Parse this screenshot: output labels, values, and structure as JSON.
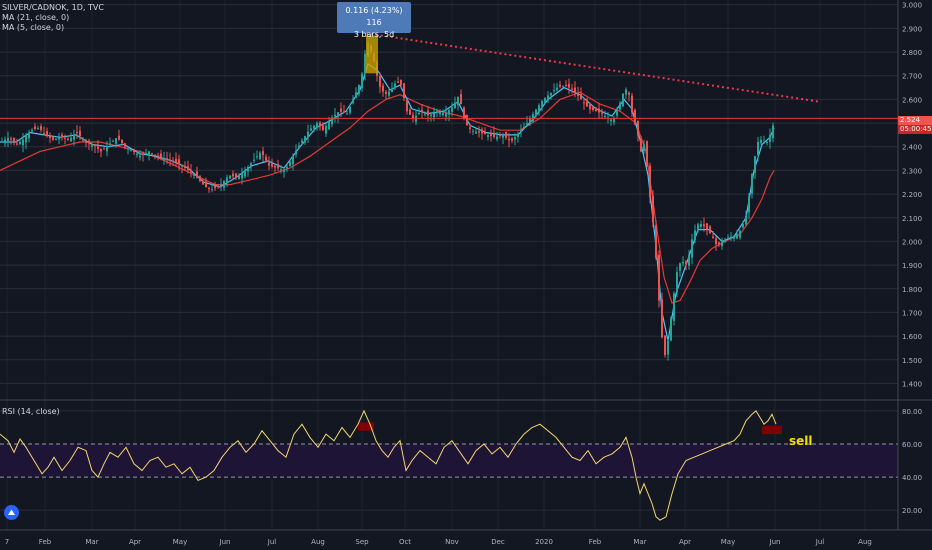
{
  "header": {
    "symbol": "SILVER/CADNOK, 1D, TVC",
    "ma1": "MA (21, close, 0)",
    "ma2": "MA (5, close, 0)"
  },
  "tooltip": {
    "line1": "0.116 (4.23%) 116",
    "line2": "3 bars, 5d"
  },
  "rsi_label": "RSI (14, close)",
  "sell_label": "sell",
  "current": {
    "price": "2.524",
    "countdown": "05:00:45"
  },
  "colors": {
    "background": "#131722",
    "grid": "#2a2e39",
    "candle_up": "#26a69a",
    "candle_down": "#ef5350",
    "ma21": "#e53935",
    "ma5": "#4fc3f7",
    "rsi": "#f5d76e",
    "rsi_band": "#1e1436",
    "trendline": "#f23645",
    "highlight": "#c8a200",
    "sell_box": "#8b0000"
  },
  "chart_data": [
    {
      "type": "candlestick",
      "title": "SILVER/CADNOK, 1D, TVC",
      "x_ticks": [
        "7",
        "Feb",
        "Mar",
        "Apr",
        "May",
        "Jun",
        "Jul",
        "Aug",
        "Sep",
        "Oct",
        "Nov",
        "Dec",
        "2020",
        "Feb",
        "Mar",
        "Apr",
        "May",
        "Jun",
        "Jul",
        "Aug"
      ],
      "y_ticks": [
        "3.000",
        "2.900",
        "2.800",
        "2.700",
        "2.600",
        "2.500",
        "2.400",
        "2.300",
        "2.200",
        "2.100",
        "2.000",
        "1.900",
        "1.800",
        "1.700",
        "1.600",
        "1.500",
        "1.400"
      ],
      "ylim": [
        1.33,
        3.02
      ],
      "series": [
        {
          "name": "MA (21, close, 0)",
          "kind": "line"
        },
        {
          "name": "MA (5, close, 0)",
          "kind": "line"
        }
      ],
      "price_path": [
        [
          0,
          2.42
        ],
        [
          8,
          2.44
        ],
        [
          16,
          2.41
        ],
        [
          22,
          2.43
        ],
        [
          30,
          2.47
        ],
        [
          38,
          2.48
        ],
        [
          44,
          2.45
        ],
        [
          52,
          2.43
        ],
        [
          60,
          2.44
        ],
        [
          68,
          2.43
        ],
        [
          76,
          2.46
        ],
        [
          84,
          2.42
        ],
        [
          92,
          2.41
        ],
        [
          100,
          2.38
        ],
        [
          108,
          2.41
        ],
        [
          116,
          2.44
        ],
        [
          124,
          2.4
        ],
        [
          132,
          2.38
        ],
        [
          140,
          2.36
        ],
        [
          148,
          2.38
        ],
        [
          156,
          2.36
        ],
        [
          164,
          2.35
        ],
        [
          172,
          2.34
        ],
        [
          180,
          2.32
        ],
        [
          188,
          2.3
        ],
        [
          196,
          2.27
        ],
        [
          204,
          2.23
        ],
        [
          212,
          2.22
        ],
        [
          220,
          2.24
        ],
        [
          228,
          2.28
        ],
        [
          236,
          2.27
        ],
        [
          244,
          2.3
        ],
        [
          252,
          2.34
        ],
        [
          260,
          2.38
        ],
        [
          268,
          2.32
        ],
        [
          276,
          2.31
        ],
        [
          284,
          2.3
        ],
        [
          292,
          2.36
        ],
        [
          300,
          2.42
        ],
        [
          308,
          2.47
        ],
        [
          316,
          2.5
        ],
        [
          322,
          2.47
        ],
        [
          330,
          2.52
        ],
        [
          338,
          2.55
        ],
        [
          346,
          2.54
        ],
        [
          354,
          2.62
        ],
        [
          360,
          2.68
        ],
        [
          366,
          2.85
        ],
        [
          372,
          2.78
        ],
        [
          378,
          2.66
        ],
        [
          384,
          2.62
        ],
        [
          390,
          2.64
        ],
        [
          396,
          2.68
        ],
        [
          400,
          2.66
        ],
        [
          406,
          2.55
        ],
        [
          412,
          2.52
        ],
        [
          420,
          2.55
        ],
        [
          428,
          2.53
        ],
        [
          436,
          2.55
        ],
        [
          444,
          2.54
        ],
        [
          452,
          2.57
        ],
        [
          458,
          2.62
        ],
        [
          464,
          2.5
        ],
        [
          470,
          2.47
        ],
        [
          478,
          2.46
        ],
        [
          486,
          2.45
        ],
        [
          494,
          2.44
        ],
        [
          502,
          2.45
        ],
        [
          510,
          2.42
        ],
        [
          518,
          2.46
        ],
        [
          526,
          2.5
        ],
        [
          534,
          2.55
        ],
        [
          542,
          2.6
        ],
        [
          548,
          2.62
        ],
        [
          556,
          2.65
        ],
        [
          564,
          2.66
        ],
        [
          572,
          2.64
        ],
        [
          580,
          2.6
        ],
        [
          588,
          2.56
        ],
        [
          596,
          2.55
        ],
        [
          604,
          2.53
        ],
        [
          612,
          2.51
        ],
        [
          618,
          2.57
        ],
        [
          624,
          2.65
        ],
        [
          628,
          2.62
        ],
        [
          632,
          2.52
        ],
        [
          636,
          2.47
        ],
        [
          640,
          2.38
        ],
        [
          644,
          2.42
        ],
        [
          648,
          2.22
        ],
        [
          652,
          2.08
        ],
        [
          656,
          1.88
        ],
        [
          660,
          1.62
        ],
        [
          664,
          1.52
        ],
        [
          668,
          1.6
        ],
        [
          672,
          1.75
        ],
        [
          676,
          1.87
        ],
        [
          680,
          1.92
        ],
        [
          686,
          1.9
        ],
        [
          692,
          2.03
        ],
        [
          698,
          2.08
        ],
        [
          704,
          2.06
        ],
        [
          710,
          2.03
        ],
        [
          716,
          1.98
        ],
        [
          722,
          2.0
        ],
        [
          728,
          2.02
        ],
        [
          734,
          2.02
        ],
        [
          740,
          2.05
        ],
        [
          746,
          2.12
        ],
        [
          750,
          2.26
        ],
        [
          754,
          2.36
        ],
        [
          758,
          2.44
        ],
        [
          762,
          2.42
        ],
        [
          766,
          2.42
        ],
        [
          770,
          2.46
        ],
        [
          774,
          2.52
        ]
      ],
      "ma21_path": [
        [
          0,
          2.3
        ],
        [
          20,
          2.34
        ],
        [
          40,
          2.38
        ],
        [
          60,
          2.4
        ],
        [
          80,
          2.42
        ],
        [
          100,
          2.42
        ],
        [
          120,
          2.4
        ],
        [
          140,
          2.38
        ],
        [
          160,
          2.35
        ],
        [
          180,
          2.31
        ],
        [
          200,
          2.27
        ],
        [
          215,
          2.24
        ],
        [
          230,
          2.24
        ],
        [
          250,
          2.26
        ],
        [
          270,
          2.28
        ],
        [
          290,
          2.31
        ],
        [
          310,
          2.36
        ],
        [
          330,
          2.42
        ],
        [
          350,
          2.48
        ],
        [
          368,
          2.55
        ],
        [
          386,
          2.6
        ],
        [
          400,
          2.62
        ],
        [
          420,
          2.58
        ],
        [
          440,
          2.55
        ],
        [
          460,
          2.53
        ],
        [
          480,
          2.5
        ],
        [
          500,
          2.47
        ],
        [
          520,
          2.47
        ],
        [
          540,
          2.52
        ],
        [
          560,
          2.6
        ],
        [
          580,
          2.63
        ],
        [
          600,
          2.58
        ],
        [
          620,
          2.55
        ],
        [
          636,
          2.5
        ],
        [
          646,
          2.38
        ],
        [
          652,
          2.2
        ],
        [
          658,
          2.02
        ],
        [
          664,
          1.85
        ],
        [
          672,
          1.74
        ],
        [
          680,
          1.75
        ],
        [
          690,
          1.83
        ],
        [
          700,
          1.92
        ],
        [
          712,
          1.97
        ],
        [
          725,
          2.0
        ],
        [
          740,
          2.03
        ],
        [
          752,
          2.1
        ],
        [
          762,
          2.18
        ],
        [
          770,
          2.27
        ],
        [
          774,
          2.3
        ]
      ],
      "ma5_path": [
        [
          0,
          2.42
        ],
        [
          16,
          2.42
        ],
        [
          30,
          2.46
        ],
        [
          44,
          2.45
        ],
        [
          60,
          2.44
        ],
        [
          76,
          2.45
        ],
        [
          92,
          2.41
        ],
        [
          108,
          2.4
        ],
        [
          124,
          2.41
        ],
        [
          140,
          2.37
        ],
        [
          156,
          2.36
        ],
        [
          172,
          2.34
        ],
        [
          188,
          2.31
        ],
        [
          204,
          2.25
        ],
        [
          220,
          2.23
        ],
        [
          236,
          2.27
        ],
        [
          252,
          2.32
        ],
        [
          268,
          2.34
        ],
        [
          284,
          2.31
        ],
        [
          300,
          2.4
        ],
        [
          316,
          2.48
        ],
        [
          330,
          2.51
        ],
        [
          346,
          2.55
        ],
        [
          360,
          2.64
        ],
        [
          368,
          2.75
        ],
        [
          378,
          2.72
        ],
        [
          390,
          2.64
        ],
        [
          400,
          2.66
        ],
        [
          412,
          2.56
        ],
        [
          428,
          2.54
        ],
        [
          444,
          2.55
        ],
        [
          458,
          2.59
        ],
        [
          470,
          2.49
        ],
        [
          486,
          2.46
        ],
        [
          502,
          2.45
        ],
        [
          518,
          2.45
        ],
        [
          534,
          2.52
        ],
        [
          548,
          2.6
        ],
        [
          564,
          2.65
        ],
        [
          580,
          2.62
        ],
        [
          596,
          2.56
        ],
        [
          612,
          2.53
        ],
        [
          624,
          2.6
        ],
        [
          632,
          2.56
        ],
        [
          640,
          2.43
        ],
        [
          648,
          2.28
        ],
        [
          656,
          1.98
        ],
        [
          662,
          1.7
        ],
        [
          668,
          1.58
        ],
        [
          676,
          1.78
        ],
        [
          686,
          1.9
        ],
        [
          698,
          2.05
        ],
        [
          710,
          2.05
        ],
        [
          722,
          2.0
        ],
        [
          734,
          2.02
        ],
        [
          746,
          2.1
        ],
        [
          754,
          2.3
        ],
        [
          762,
          2.41
        ],
        [
          770,
          2.44
        ],
        [
          774,
          2.48
        ]
      ],
      "trendline": {
        "from": [
          366,
          2.88
        ],
        "to": [
          820,
          2.59
        ]
      },
      "horizontal_level": 2.52,
      "measure_box": {
        "x0": 366,
        "x1": 378,
        "y0": 2.71,
        "y1": 2.87
      },
      "grid": true
    },
    {
      "type": "line",
      "title": "RSI (14, close)",
      "y_ticks": [
        "80.00",
        "60.00",
        "40.00",
        "20.00"
      ],
      "ylim": [
        8,
        86
      ],
      "band": [
        40,
        60
      ],
      "rsi_path": [
        [
          0,
          66
        ],
        [
          8,
          62
        ],
        [
          14,
          55
        ],
        [
          20,
          63
        ],
        [
          26,
          58
        ],
        [
          34,
          50
        ],
        [
          42,
          42
        ],
        [
          48,
          46
        ],
        [
          54,
          52
        ],
        [
          62,
          44
        ],
        [
          70,
          50
        ],
        [
          78,
          58
        ],
        [
          86,
          56
        ],
        [
          92,
          44
        ],
        [
          98,
          40
        ],
        [
          104,
          48
        ],
        [
          110,
          55
        ],
        [
          118,
          52
        ],
        [
          126,
          58
        ],
        [
          134,
          48
        ],
        [
          142,
          44
        ],
        [
          150,
          50
        ],
        [
          158,
          52
        ],
        [
          166,
          46
        ],
        [
          174,
          48
        ],
        [
          182,
          42
        ],
        [
          190,
          46
        ],
        [
          198,
          38
        ],
        [
          206,
          40
        ],
        [
          214,
          44
        ],
        [
          222,
          52
        ],
        [
          230,
          58
        ],
        [
          238,
          62
        ],
        [
          246,
          55
        ],
        [
          254,
          60
        ],
        [
          262,
          68
        ],
        [
          270,
          62
        ],
        [
          278,
          56
        ],
        [
          286,
          52
        ],
        [
          294,
          66
        ],
        [
          302,
          72
        ],
        [
          310,
          64
        ],
        [
          318,
          58
        ],
        [
          326,
          66
        ],
        [
          334,
          62
        ],
        [
          342,
          70
        ],
        [
          350,
          64
        ],
        [
          358,
          72
        ],
        [
          364,
          80
        ],
        [
          370,
          72
        ],
        [
          376,
          62
        ],
        [
          382,
          56
        ],
        [
          388,
          52
        ],
        [
          394,
          58
        ],
        [
          400,
          62
        ],
        [
          406,
          44
        ],
        [
          412,
          50
        ],
        [
          420,
          56
        ],
        [
          428,
          52
        ],
        [
          436,
          48
        ],
        [
          444,
          58
        ],
        [
          452,
          62
        ],
        [
          460,
          55
        ],
        [
          468,
          48
        ],
        [
          476,
          56
        ],
        [
          484,
          60
        ],
        [
          492,
          54
        ],
        [
          500,
          58
        ],
        [
          508,
          52
        ],
        [
          516,
          60
        ],
        [
          524,
          66
        ],
        [
          532,
          70
        ],
        [
          540,
          72
        ],
        [
          548,
          68
        ],
        [
          556,
          64
        ],
        [
          564,
          58
        ],
        [
          572,
          52
        ],
        [
          580,
          50
        ],
        [
          588,
          56
        ],
        [
          596,
          48
        ],
        [
          604,
          52
        ],
        [
          612,
          54
        ],
        [
          620,
          58
        ],
        [
          626,
          64
        ],
        [
          632,
          52
        ],
        [
          636,
          40
        ],
        [
          640,
          30
        ],
        [
          644,
          36
        ],
        [
          648,
          30
        ],
        [
          652,
          24
        ],
        [
          656,
          16
        ],
        [
          660,
          14
        ],
        [
          666,
          16
        ],
        [
          672,
          30
        ],
        [
          678,
          42
        ],
        [
          686,
          50
        ],
        [
          694,
          52
        ],
        [
          702,
          54
        ],
        [
          710,
          56
        ],
        [
          718,
          58
        ],
        [
          726,
          60
        ],
        [
          734,
          62
        ],
        [
          740,
          66
        ],
        [
          746,
          74
        ],
        [
          752,
          78
        ],
        [
          756,
          80
        ],
        [
          760,
          76
        ],
        [
          764,
          72
        ],
        [
          768,
          74
        ],
        [
          772,
          78
        ],
        [
          776,
          72
        ]
      ],
      "sell_boxes": [
        {
          "x0": 358,
          "x1": 374,
          "y0": 68,
          "y1": 73
        },
        {
          "x0": 762,
          "x1": 782,
          "y0": 66,
          "y1": 71
        }
      ],
      "grid": true
    }
  ]
}
